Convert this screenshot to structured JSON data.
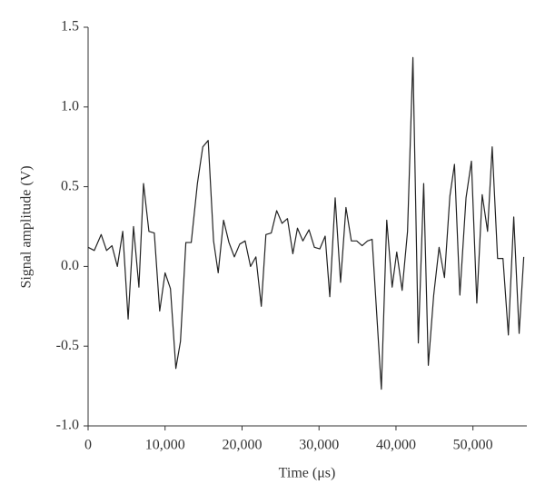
{
  "chart_data": {
    "type": "line",
    "xlabel": "Time (μs)",
    "ylabel": "Signal amplitude (V)",
    "x": [
      0,
      800,
      1700,
      2400,
      3100,
      3800,
      4500,
      5200,
      5900,
      6600,
      7200,
      7900,
      8600,
      9300,
      10000,
      10700,
      11400,
      12000,
      12700,
      13400,
      14200,
      14900,
      15600,
      16300,
      16900,
      17600,
      18300,
      19000,
      19700,
      20400,
      21100,
      21800,
      22500,
      23100,
      23800,
      24500,
      25200,
      25900,
      26600,
      27200,
      27900,
      28700,
      29400,
      30100,
      30800,
      31400,
      32100,
      32800,
      33500,
      34200,
      34900,
      35600,
      36300,
      36900,
      38100,
      38800,
      39500,
      40100,
      40800,
      41500,
      42200,
      42900,
      43600,
      44200,
      44900,
      45600,
      46300,
      47000,
      47600,
      48300,
      49100,
      49800,
      50500,
      51200,
      51900,
      52500,
      53200,
      53900,
      54600,
      55300,
      56000,
      56600
    ],
    "series": [
      {
        "color": "#222222",
        "values": [
          0.12,
          0.1,
          0.2,
          0.1,
          0.13,
          0.0,
          0.22,
          -0.33,
          0.25,
          -0.13,
          0.52,
          0.22,
          0.21,
          -0.28,
          -0.04,
          -0.14,
          -0.64,
          -0.47,
          0.15,
          0.15,
          0.52,
          0.75,
          0.79,
          0.16,
          -0.04,
          0.29,
          0.15,
          0.06,
          0.14,
          0.16,
          0.0,
          0.06,
          -0.25,
          0.2,
          0.21,
          0.35,
          0.27,
          0.3,
          0.08,
          0.24,
          0.16,
          0.23,
          0.12,
          0.11,
          0.19,
          -0.19,
          0.43,
          -0.1,
          0.37,
          0.16,
          0.16,
          0.13,
          0.16,
          0.17,
          -0.77,
          0.29,
          -0.13,
          0.09,
          -0.15,
          0.22,
          1.31,
          -0.48,
          0.52,
          -0.62,
          -0.18,
          0.12,
          -0.07,
          0.44,
          0.64,
          -0.18,
          0.43,
          0.66,
          -0.23,
          0.45,
          0.22,
          0.75,
          0.05,
          0.05,
          -0.43,
          0.31,
          -0.42,
          0.06
        ]
      }
    ],
    "xlim": [
      0,
      57000
    ],
    "xticks": [
      0,
      {
        "value": 10000,
        "label": "10,000"
      },
      {
        "value": 20000,
        "label": "20,000"
      },
      {
        "value": 30000,
        "label": "30,000"
      },
      {
        "value": 40000,
        "label": "40,000"
      },
      {
        "value": 50000,
        "label": "50,000"
      }
    ],
    "ylim": [
      -1.0,
      1.5
    ],
    "yticks": [
      {
        "value": -1.0,
        "label": "-1.0"
      },
      -0.5,
      {
        "value": 0.0,
        "label": "0.0"
      },
      0.5,
      {
        "value": 1.0,
        "label": "1.0"
      },
      1.5
    ],
    "grid": false
  }
}
